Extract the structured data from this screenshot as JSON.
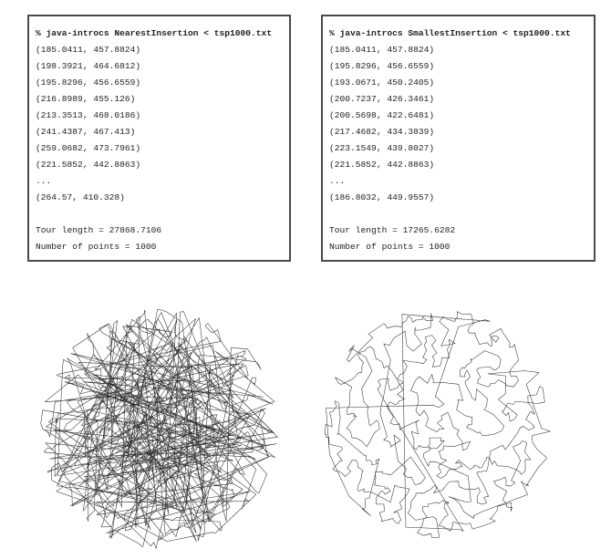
{
  "left_panel": {
    "command": "% java-introcs NearestInsertion < tsp1000.txt",
    "points": [
      "(185.0411, 457.8824)",
      "(198.3921, 464.6812)",
      "(195.8296, 456.6559)",
      "(216.8989, 455.126)",
      "(213.3513, 468.0186)",
      "(241.4387, 467.413)",
      "(259.0682, 473.7961)",
      "(221.5852, 442.8863)"
    ],
    "ellipsis": "...",
    "last_point": "(264.57, 410.328)",
    "tour_length": "Tour length = 27868.7106",
    "num_points": "Number of points = 1000"
  },
  "right_panel": {
    "command": "% java-introcs SmallestInsertion < tsp1000.txt",
    "points": [
      "(185.0411, 457.8824)",
      "(195.8296, 456.6559)",
      "(193.0671, 450.2405)",
      "(200.7237, 426.3461)",
      "(200.5698, 422.6481)",
      "(217.4682, 434.3839)",
      "(223.1549, 439.8027)",
      "(221.5852, 442.8863)"
    ],
    "ellipsis": "...",
    "last_point": "(186.8032, 449.9557)",
    "tour_length": "Tour length = 17265.6282",
    "num_points": "Number of points = 1000"
  },
  "plots": {
    "left": {
      "heuristic": "NearestInsertion",
      "style": "long-crossing-edges"
    },
    "right": {
      "heuristic": "SmallestInsertion",
      "style": "short-local-edges"
    },
    "stroke_color": "#303030"
  }
}
